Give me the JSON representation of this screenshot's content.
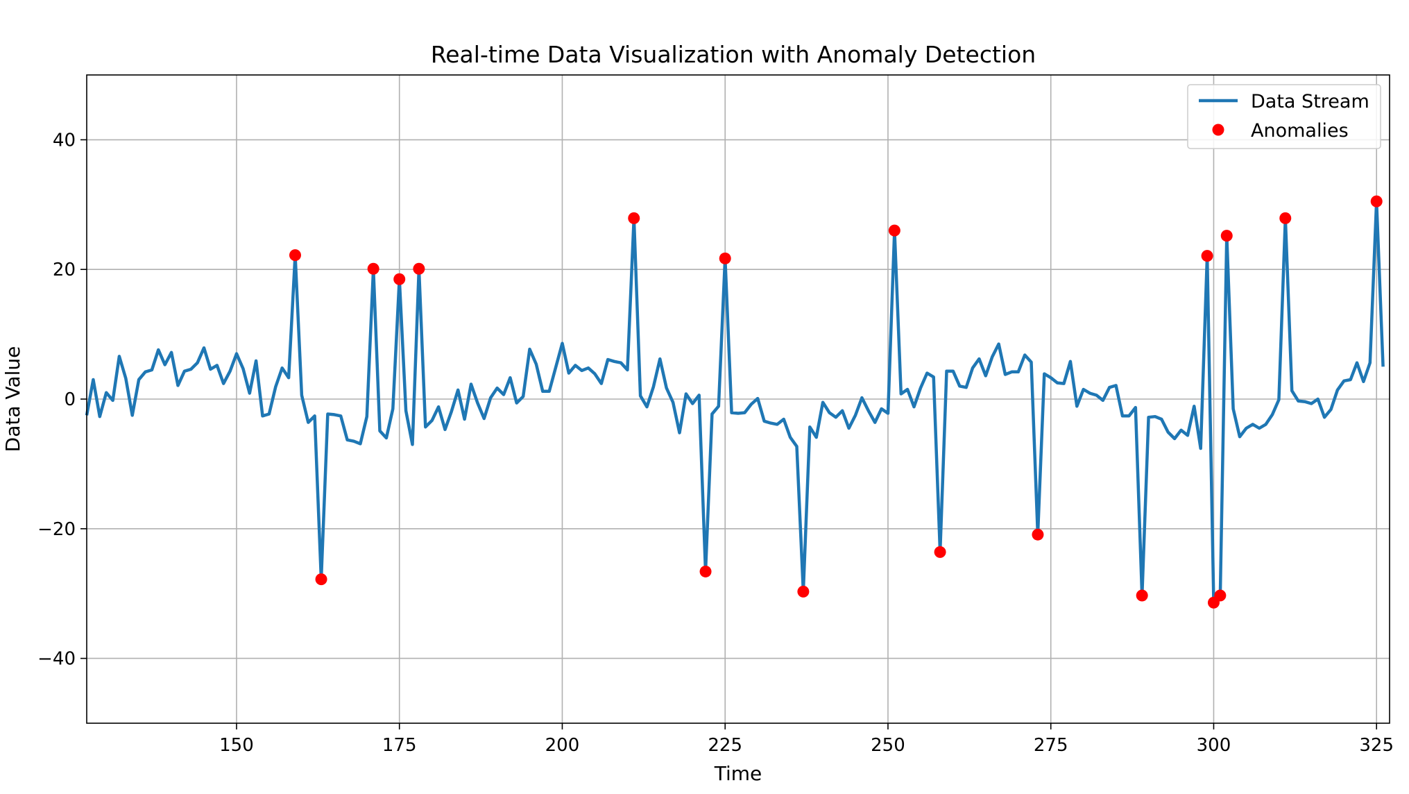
{
  "chart_data": {
    "type": "line",
    "title": "Real-time Data Visualization with Anomaly Detection",
    "xlabel": "Time",
    "ylabel": "Data Value",
    "xlim": [
      127,
      327
    ],
    "ylim": [
      -50,
      50
    ],
    "xticks": [
      150,
      175,
      200,
      225,
      250,
      275,
      300,
      325
    ],
    "yticks": [
      -40,
      -20,
      0,
      20,
      40
    ],
    "xtick_labels": [
      "150",
      "175",
      "200",
      "225",
      "250",
      "275",
      "300",
      "325"
    ],
    "ytick_labels": [
      "−40",
      "−20",
      "0",
      "20",
      "40"
    ],
    "grid": true,
    "legend_position": "top-right",
    "colors": {
      "line": "#1f77b4",
      "anomaly": "#ff0000",
      "grid": "#b0b0b0"
    },
    "series": [
      {
        "name": "Data Stream",
        "kind": "line",
        "x": [
          127,
          128,
          129,
          130,
          131,
          132,
          133,
          134,
          135,
          136,
          137,
          138,
          139,
          140,
          141,
          142,
          143,
          144,
          145,
          146,
          147,
          148,
          149,
          150,
          151,
          152,
          153,
          154,
          155,
          156,
          157,
          158,
          159,
          160,
          161,
          162,
          163,
          164,
          165,
          166,
          167,
          168,
          169,
          170,
          171,
          172,
          173,
          174,
          175,
          176,
          177,
          178,
          179,
          180,
          181,
          182,
          183,
          184,
          185,
          186,
          187,
          188,
          189,
          190,
          191,
          192,
          193,
          194,
          195,
          196,
          197,
          198,
          199,
          200,
          201,
          202,
          203,
          204,
          205,
          206,
          207,
          208,
          209,
          210,
          211,
          212,
          213,
          214,
          215,
          216,
          217,
          218,
          219,
          220,
          221,
          222,
          223,
          224,
          225,
          226,
          227,
          228,
          229,
          230,
          231,
          232,
          233,
          234,
          235,
          236,
          237,
          238,
          239,
          240,
          241,
          242,
          243,
          244,
          245,
          246,
          247,
          248,
          249,
          250,
          251,
          252,
          253,
          254,
          255,
          256,
          257,
          258,
          259,
          260,
          261,
          262,
          263,
          264,
          265,
          266,
          267,
          268,
          269,
          270,
          271,
          272,
          273,
          274,
          275,
          276,
          277,
          278,
          279,
          280,
          281,
          282,
          283,
          284,
          285,
          286,
          287,
          288,
          289,
          290,
          291,
          292,
          293,
          294,
          295,
          296,
          297,
          298,
          299,
          300,
          301,
          302,
          303,
          304,
          305,
          306,
          307,
          308,
          309,
          310,
          311,
          312,
          313,
          314,
          315,
          316,
          317,
          318,
          319,
          320,
          321,
          322,
          323,
          324,
          325,
          326
        ],
        "y": [
          -2.5,
          3,
          -2.7,
          1,
          -0.2,
          6.6,
          3.2,
          -2.5,
          3,
          4.2,
          4.5,
          7.6,
          5.3,
          7.2,
          2.1,
          4.3,
          4.6,
          5.6,
          7.9,
          4.6,
          5.2,
          2.4,
          4.3,
          7,
          4.7,
          0.9,
          5.9,
          -2.6,
          -2.3,
          1.9,
          4.8,
          3.3,
          22.2,
          0.6,
          -3.6,
          -2.6,
          -27.8,
          -2.3,
          -2.4,
          -2.6,
          -6.3,
          -6.5,
          -6.9,
          -2.7,
          20.1,
          -4.9,
          -6,
          -1.5,
          18.5,
          -1.8,
          -7,
          20.1,
          -4.3,
          -3.3,
          -1.2,
          -4.7,
          -1.9,
          1.4,
          -3.1,
          2.3,
          -0.6,
          -3,
          0.2,
          1.7,
          0.7,
          3.3,
          -0.6,
          0.4,
          7.7,
          5.4,
          1.2,
          1.2,
          4.9,
          8.6,
          4,
          5.2,
          4.4,
          4.8,
          3.9,
          2.4,
          6.1,
          5.8,
          5.6,
          4.5,
          27.9,
          0.5,
          -1.2,
          1.9,
          6.2,
          1.7,
          -0.5,
          -5.2,
          0.8,
          -0.7,
          0.6,
          -26.6,
          -2.3,
          -1.1,
          21.7,
          -2.1,
          -2.2,
          -2.1,
          -0.8,
          0.1,
          -3.4,
          -3.7,
          -3.9,
          -3.1,
          -5.9,
          -7.3,
          -29.7,
          -4.3,
          -5.9,
          -0.5,
          -2.1,
          -2.8,
          -1.8,
          -4.5,
          -2.5,
          0.2,
          -1.8,
          -3.6,
          -1.5,
          -2.2,
          26,
          0.8,
          1.5,
          -1.2,
          1.7,
          4,
          3.4,
          -23.6,
          4.3,
          4.3,
          2,
          1.8,
          4.8,
          6.2,
          3.6,
          6.5,
          8.5,
          3.8,
          4.2,
          4.2,
          6.8,
          5.7,
          -20.9,
          3.9,
          3.3,
          2.5,
          2.4,
          5.8,
          -1.1,
          1.5,
          0.9,
          0.6,
          -0.2,
          1.8,
          2.1,
          -2.6,
          -2.6,
          -1.3,
          -30.3,
          -2.8,
          -2.7,
          -3.1,
          -5.1,
          -6.1,
          -4.8,
          -5.6,
          -1.1,
          -7.6,
          22.1,
          -31.4,
          -30.3,
          25.2,
          -1.5,
          -5.8,
          -4.5,
          -3.9,
          -4.5,
          -3.9,
          -2.4,
          -0.1,
          27.9,
          1.3,
          -0.3,
          -0.4,
          -0.7,
          0,
          -2.8,
          -1.6,
          1.4,
          2.8,
          3,
          5.6,
          2.7,
          5.6,
          30.5,
          5
        ]
      },
      {
        "name": "Anomalies",
        "kind": "scatter",
        "x": [
          159,
          163,
          171,
          175,
          178,
          211,
          222,
          225,
          237,
          251,
          258,
          273,
          289,
          299,
          300,
          301,
          302,
          311,
          325
        ],
        "y": [
          22.2,
          -27.8,
          20.1,
          18.5,
          20.1,
          27.9,
          -26.6,
          21.7,
          -29.7,
          26,
          -23.6,
          -20.9,
          -30.3,
          22.1,
          -31.4,
          -30.3,
          25.2,
          27.9,
          30.5
        ]
      }
    ]
  }
}
